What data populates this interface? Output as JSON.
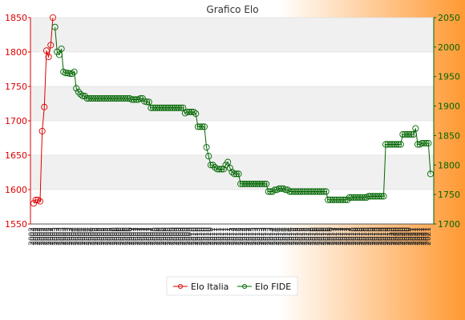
{
  "chart_data": {
    "type": "line",
    "title": "Grafico Elo",
    "xlabel": "",
    "y_left": {
      "min": 1550,
      "max": 1850,
      "ticks": [
        1550,
        1600,
        1650,
        1700,
        1750,
        1800,
        1850
      ]
    },
    "y_right": {
      "min": 1700,
      "max": 2050,
      "ticks": [
        1700,
        1750,
        1800,
        1850,
        1900,
        1950,
        2000,
        2050
      ]
    },
    "x_tick_labels": [
      "2002",
      "2003",
      "2004",
      "2005",
      "2006",
      "2007",
      "2008",
      "2009",
      "2010",
      "2011",
      "2012",
      "2013",
      "2014",
      "2015",
      "2016",
      "2017",
      "2018",
      "2019",
      "2020",
      "2021"
    ],
    "grid": true,
    "legend_position": "bottom-center",
    "series": [
      {
        "name": "Elo Italia",
        "axis": "left",
        "color": "#dd0000",
        "values": [
          1580,
          1585,
          1585,
          1583,
          1685,
          1720,
          1802,
          1793,
          1810,
          1850
        ]
      },
      {
        "name": "Elo FIDE",
        "axis": "right",
        "color": "#006600",
        "x_start": 10,
        "values": [
          2034,
          1992,
          1987,
          1997,
          1958,
          1956,
          1956,
          1955,
          1955,
          1958,
          1930,
          1924,
          1920,
          1917,
          1917,
          1913,
          1913,
          1913,
          1913,
          1913,
          1913,
          1913,
          1913,
          1913,
          1913,
          1913,
          1913,
          1913,
          1913,
          1913,
          1913,
          1913,
          1913,
          1913,
          1913,
          1913,
          1911,
          1911,
          1911,
          1911,
          1913,
          1913,
          1908,
          1907,
          1907,
          1897,
          1897,
          1897,
          1897,
          1897,
          1897,
          1897,
          1897,
          1897,
          1897,
          1897,
          1897,
          1897,
          1897,
          1897,
          1897,
          1888,
          1890,
          1890,
          1890,
          1890,
          1887,
          1865,
          1865,
          1865,
          1865,
          1830,
          1815,
          1800,
          1800,
          1796,
          1793,
          1793,
          1793,
          1793,
          1800,
          1805,
          1795,
          1788,
          1785,
          1785,
          1785,
          1768,
          1768,
          1768,
          1768,
          1768,
          1768,
          1768,
          1768,
          1768,
          1768,
          1768,
          1768,
          1768,
          1755,
          1755,
          1755,
          1758,
          1758,
          1760,
          1760,
          1760,
          1758,
          1758,
          1755,
          1755,
          1755,
          1755,
          1755,
          1755,
          1755,
          1755,
          1755,
          1755,
          1755,
          1755,
          1755,
          1755,
          1755,
          1755,
          1755,
          1755,
          1741,
          1741,
          1741,
          1741,
          1741,
          1741,
          1741,
          1741,
          1741,
          1741,
          1745,
          1745,
          1745,
          1745,
          1745,
          1745,
          1745,
          1745,
          1745,
          1747,
          1747,
          1747,
          1747,
          1747,
          1747,
          1747,
          1747,
          1835,
          1835,
          1835,
          1835,
          1835,
          1835,
          1835,
          1835,
          1852,
          1852,
          1852,
          1852,
          1852,
          1852,
          1862,
          1835,
          1835,
          1837,
          1837,
          1837,
          1837,
          1785
        ]
      }
    ]
  },
  "colors": {
    "background_left": "#ffffff",
    "background_right": "#ff9933",
    "plot_band_light": "#ffffff",
    "plot_band_dark": "#f0f0f0"
  }
}
